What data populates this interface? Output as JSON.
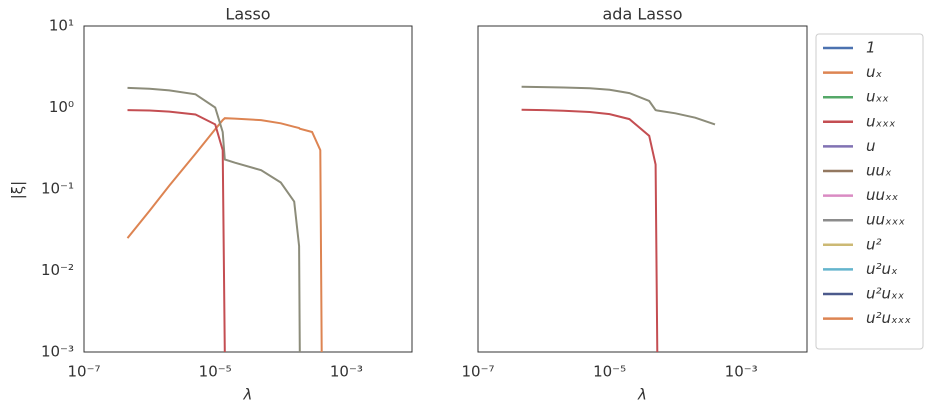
{
  "legend": {
    "entries": [
      {
        "name": "1",
        "color": "#4c72b0"
      },
      {
        "name": "uₓ",
        "color": "#dd8452"
      },
      {
        "name": "uₓₓ",
        "color": "#55a868"
      },
      {
        "name": "uₓₓₓ",
        "color": "#c44e52"
      },
      {
        "name": "u",
        "color": "#8172b3"
      },
      {
        "name": "uuₓ",
        "color": "#937860"
      },
      {
        "name": "uuₓₓ",
        "color": "#da8bc3"
      },
      {
        "name": "uuₓₓₓ",
        "color": "#8c8c8c"
      },
      {
        "name": "u²",
        "color": "#ccb974"
      },
      {
        "name": "u²uₓ",
        "color": "#64b5cd"
      },
      {
        "name": "u²uₓₓ",
        "color": "#4c5a8c"
      },
      {
        "name": "u²uₓₓₓ",
        "color": "#dd8452"
      }
    ]
  },
  "chart_data": [
    {
      "type": "line",
      "title": "Lasso",
      "xlabel": "λ",
      "ylabel": "|ξ|",
      "log_x": true,
      "log_y": true,
      "x": [
        4.6e-07,
        1e-06,
        2e-06,
        5e-06,
        1e-05,
        1.3e-05,
        1.4e-05,
        2e-05,
        5e-05,
        0.0001,
        0.00016,
        0.00019,
        0.000195,
        0.0003,
        0.0004,
        0.00042
      ],
      "series": [
        {
          "color": "#dd8452",
          "values": [
            0.025,
            0.054,
            0.11,
            0.27,
            0.54,
            0.7,
            0.74,
            0.73,
            0.7,
            0.64,
            0.58,
            0.56,
            0.55,
            0.5,
            0.3,
            0.001
          ]
        },
        {
          "color": "#8c8c7a",
          "values": [
            1.74,
            1.7,
            1.62,
            1.45,
            1.0,
            0.5,
            0.23,
            0.21,
            0.17,
            0.12,
            0.07,
            0.02,
            0.001,
            null,
            null,
            null
          ]
        },
        {
          "color": "#c44e52",
          "values": [
            0.93,
            0.92,
            0.89,
            0.82,
            0.62,
            0.3,
            0.001,
            null,
            null,
            null,
            null,
            null,
            null,
            null,
            null,
            null
          ]
        }
      ],
      "xlim": [
        1e-07,
        0.01
      ],
      "ylim": [
        0.001,
        10
      ],
      "xticks": [
        {
          "value": 1e-07,
          "label": "10⁻⁷"
        },
        {
          "value": 1e-05,
          "label": "10⁻⁵"
        },
        {
          "value": 0.001,
          "label": "10⁻³"
        }
      ],
      "yticks": [
        {
          "value": 0.001,
          "label": "10⁻³"
        },
        {
          "value": 0.01,
          "label": "10⁻²"
        },
        {
          "value": 0.1,
          "label": "10⁻¹"
        },
        {
          "value": 1,
          "label": "10⁰"
        },
        {
          "value": 10,
          "label": "10¹"
        }
      ]
    },
    {
      "type": "line",
      "title": "ada Lasso",
      "xlabel": "λ",
      "log_x": true,
      "log_y": true,
      "x": [
        4.6e-07,
        1e-06,
        2e-06,
        5e-06,
        1e-05,
        2e-05,
        4e-05,
        5e-05,
        5.3e-05,
        0.0001,
        0.0002,
        0.0004
      ],
      "series": [
        {
          "color": "#8c8c7a",
          "values": [
            1.8,
            1.78,
            1.76,
            1.72,
            1.65,
            1.5,
            1.2,
            0.93,
            0.92,
            0.85,
            0.75,
            0.62
          ]
        },
        {
          "color": "#c44e52",
          "values": [
            0.94,
            0.93,
            0.91,
            0.88,
            0.83,
            0.72,
            0.45,
            0.2,
            0.001,
            null,
            null,
            null
          ]
        }
      ],
      "xlim": [
        1e-07,
        0.01
      ],
      "ylim": [
        0.001,
        10
      ],
      "xticks": [
        {
          "value": 1e-07,
          "label": "10⁻⁷"
        },
        {
          "value": 1e-05,
          "label": "10⁻⁵"
        },
        {
          "value": 0.001,
          "label": "10⁻³"
        }
      ]
    }
  ]
}
